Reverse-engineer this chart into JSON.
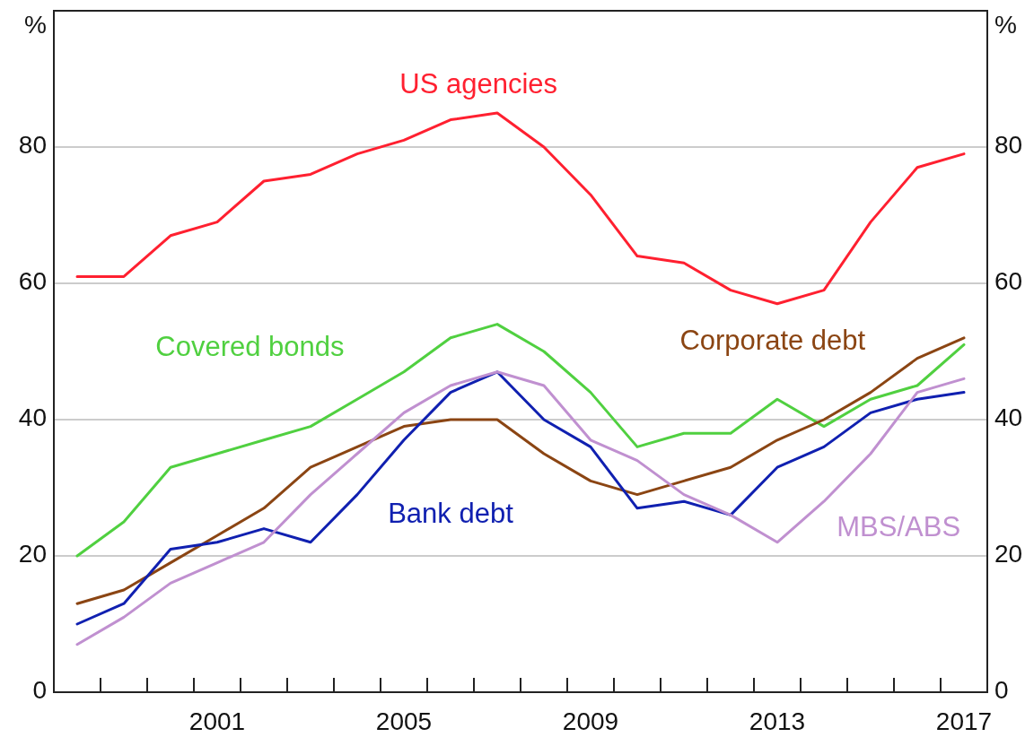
{
  "chart_data": {
    "type": "line",
    "categories": [
      null,
      null,
      null,
      "2001",
      null,
      null,
      null,
      "2005",
      null,
      null,
      null,
      "2009",
      null,
      null,
      null,
      "2013",
      null,
      null,
      null,
      "2017"
    ],
    "ylabel": "%",
    "y2label": "%",
    "ylim": [
      0,
      100
    ],
    "yticks": [
      0,
      20,
      40,
      60,
      80
    ],
    "y2lim": [
      0,
      100
    ],
    "y2ticks": [
      0,
      20,
      40,
      60,
      80
    ],
    "grid": "y",
    "series": [
      {
        "name": "US agencies",
        "color": "#ff2030",
        "values": [
          61,
          61,
          67,
          69,
          75,
          76,
          79,
          81,
          84,
          85,
          80,
          73,
          64,
          63,
          59,
          57,
          59,
          69,
          77,
          79
        ]
      },
      {
        "name": "Covered bonds",
        "color": "#50d040",
        "values": [
          20,
          25,
          33,
          35,
          37,
          39,
          43,
          47,
          52,
          54,
          50,
          44,
          36,
          38,
          38,
          43,
          39,
          43,
          45,
          51
        ]
      },
      {
        "name": "Corporate debt",
        "color": "#8b4513",
        "values": [
          13,
          15,
          19,
          23,
          27,
          33,
          36,
          39,
          40,
          40,
          35,
          31,
          29,
          31,
          33,
          37,
          40,
          44,
          49,
          52
        ]
      },
      {
        "name": "Bank debt",
        "color": "#1020b0",
        "values": [
          10,
          13,
          21,
          22,
          24,
          22,
          29,
          37,
          44,
          47,
          40,
          36,
          27,
          28,
          26,
          33,
          36,
          41,
          43,
          44
        ]
      },
      {
        "name": "MBS/ABS",
        "color": "#c090d0",
        "values": [
          7,
          11,
          16,
          19,
          22,
          29,
          35,
          41,
          45,
          47,
          45,
          37,
          34,
          29,
          26,
          22,
          28,
          35,
          44,
          46
        ]
      }
    ]
  }
}
